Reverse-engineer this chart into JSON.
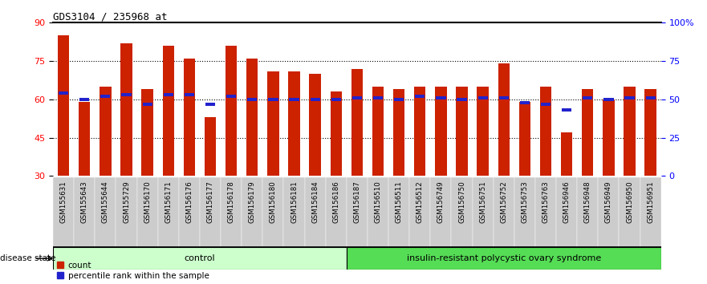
{
  "title": "GDS3104 / 235968_at",
  "samples": [
    "GSM155631",
    "GSM155643",
    "GSM155644",
    "GSM155729",
    "GSM156170",
    "GSM156171",
    "GSM156176",
    "GSM156177",
    "GSM156178",
    "GSM156179",
    "GSM156180",
    "GSM156181",
    "GSM156184",
    "GSM156186",
    "GSM156187",
    "GSM156510",
    "GSM156511",
    "GSM156512",
    "GSM156749",
    "GSM156750",
    "GSM156751",
    "GSM156752",
    "GSM156753",
    "GSM156763",
    "GSM156946",
    "GSM156948",
    "GSM156949",
    "GSM156950",
    "GSM156951"
  ],
  "counts": [
    85,
    59,
    65,
    82,
    64,
    81,
    76,
    53,
    81,
    76,
    71,
    71,
    70,
    63,
    72,
    65,
    64,
    65,
    65,
    65,
    65,
    74,
    59,
    65,
    47,
    64,
    60,
    65,
    64
  ],
  "percentile_ranks": [
    54,
    50,
    52,
    53,
    47,
    53,
    53,
    47,
    52,
    50,
    50,
    50,
    50,
    50,
    51,
    51,
    50,
    52,
    51,
    50,
    51,
    51,
    48,
    47,
    43,
    51,
    50,
    51,
    51
  ],
  "control_count": 14,
  "bar_color": "#cc2200",
  "marker_color": "#2222cc",
  "ylim_left": [
    30,
    90
  ],
  "yticks_left": [
    30,
    45,
    60,
    75,
    90
  ],
  "ylim_right": [
    0,
    100
  ],
  "yticks_right": [
    0,
    25,
    50,
    75,
    100
  ],
  "control_label": "control",
  "disease_label": "insulin-resistant polycystic ovary syndrome",
  "control_color": "#ccffcc",
  "disease_color": "#55dd55",
  "legend_count_label": "count",
  "legend_percentile_label": "percentile rank within the sample",
  "disease_state_label": "disease state",
  "bg_color": "#ffffff",
  "label_bg_color": "#cccccc",
  "bar_width": 0.55
}
